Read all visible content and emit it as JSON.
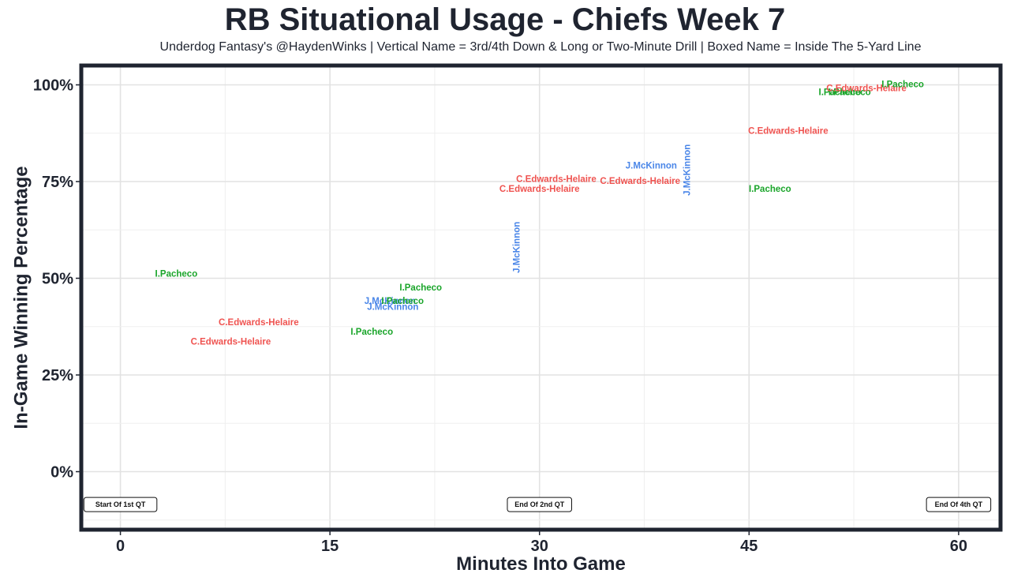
{
  "chart_data": {
    "type": "scatter",
    "title": "RB Situational Usage - Chiefs Week 7",
    "subtitle": "Underdog Fantasy's @HaydenWinks | Vertical Name = 3rd/4th Down & Long or Two-Minute Drill | Boxed Name = Inside The 5-Yard Line",
    "xlabel": "Minutes Into Game",
    "ylabel": "In-Game Winning Percentage",
    "xlim": [
      -2.8,
      63
    ],
    "ylim": [
      -15,
      105
    ],
    "x_ticks": [
      0,
      15,
      30,
      45,
      60
    ],
    "x_tick_labels": [
      "0",
      "15",
      "30",
      "45",
      "60"
    ],
    "y_ticks": [
      0,
      25,
      50,
      75,
      100
    ],
    "y_tick_labels": [
      "0%",
      "25%",
      "50%",
      "75%",
      "100%"
    ],
    "colors": {
      "C.Edwards-Helaire": "#ef5350",
      "I.Pacheco": "#1aa52a",
      "J.McKinnon": "#4a86e8"
    },
    "points": [
      {
        "name": "I.Pacheco",
        "x": 4.0,
        "y": 51,
        "vertical": false
      },
      {
        "name": "C.Edwards-Helaire",
        "x": 9.9,
        "y": 38.5,
        "vertical": false
      },
      {
        "name": "C.Edwards-Helaire",
        "x": 7.9,
        "y": 33.5,
        "vertical": false
      },
      {
        "name": "I.Pacheco",
        "x": 18.0,
        "y": 36,
        "vertical": false
      },
      {
        "name": "J.McKinnon",
        "x": 19.5,
        "y": 42.5,
        "vertical": false
      },
      {
        "name": "J.McKinnon",
        "x": 19.3,
        "y": 44,
        "vertical": false
      },
      {
        "name": "I.Pacheco",
        "x": 20.2,
        "y": 44,
        "vertical": false
      },
      {
        "name": "I.Pacheco",
        "x": 21.5,
        "y": 47.5,
        "vertical": false
      },
      {
        "name": "J.McKinnon",
        "x": 28.4,
        "y": 58,
        "vertical": true
      },
      {
        "name": "C.Edwards-Helaire",
        "x": 30.0,
        "y": 73,
        "vertical": false
      },
      {
        "name": "C.Edwards-Helaire",
        "x": 31.2,
        "y": 75.5,
        "vertical": false
      },
      {
        "name": "C.Edwards-Helaire",
        "x": 37.2,
        "y": 75,
        "vertical": false
      },
      {
        "name": "J.McKinnon",
        "x": 38.0,
        "y": 79,
        "vertical": false
      },
      {
        "name": "J.McKinnon",
        "x": 40.6,
        "y": 78,
        "vertical": true
      },
      {
        "name": "C.Edwards-Helaire",
        "x": 47.8,
        "y": 88,
        "vertical": false
      },
      {
        "name": "I.Pacheco",
        "x": 46.5,
        "y": 73,
        "vertical": false
      },
      {
        "name": "I.Pacheco",
        "x": 51.5,
        "y": 98,
        "vertical": false
      },
      {
        "name": "I.Pacheco",
        "x": 52.2,
        "y": 98,
        "vertical": false
      },
      {
        "name": "C.Edwards-Helaire",
        "x": 53.4,
        "y": 99,
        "vertical": false
      },
      {
        "name": "I.Pacheco",
        "x": 56.0,
        "y": 100,
        "vertical": false
      }
    ],
    "quarter_markers": [
      {
        "label": "Start Of 1st QT",
        "x": 0
      },
      {
        "label": "End Of 2nd QT",
        "x": 30
      },
      {
        "label": "End Of 4th QT",
        "x": 60
      }
    ]
  }
}
